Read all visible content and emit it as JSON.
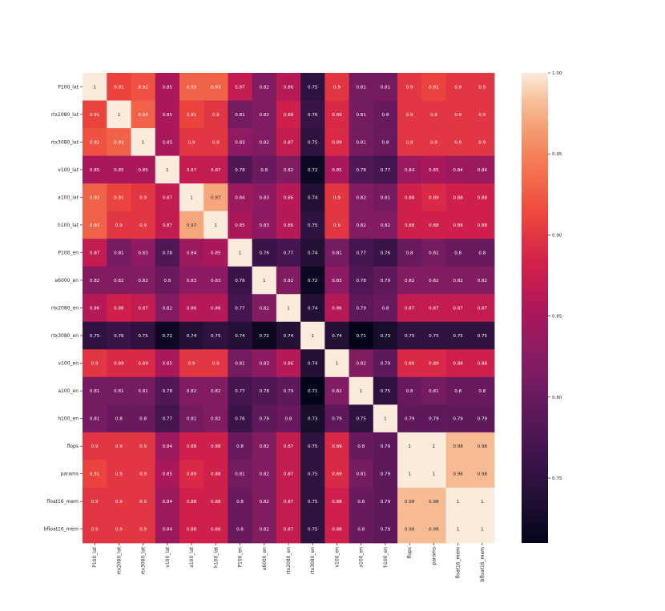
{
  "chart_data": {
    "type": "heatmap",
    "title": "",
    "xlabel": "",
    "ylabel": "",
    "labels": [
      "P100_lat",
      "rtx2080_lat",
      "rtx3080_lat",
      "v100_lat",
      "a100_lat",
      "h100_lat",
      "P100_en",
      "a6000_en",
      "rtx2080_en",
      "rtx3080_en",
      "v100_en",
      "a100_en",
      "h100_en",
      "flops",
      "params",
      "float16_mem",
      "bfloat16_mem"
    ],
    "matrix": [
      [
        1,
        0.91,
        0.92,
        0.85,
        0.93,
        0.93,
        0.87,
        0.82,
        0.86,
        0.75,
        0.9,
        0.81,
        0.81,
        0.9,
        0.91,
        0.9,
        0.9
      ],
      [
        0.91,
        1,
        0.93,
        0.85,
        0.91,
        0.9,
        0.81,
        0.82,
        0.88,
        0.76,
        0.89,
        0.81,
        0.8,
        0.9,
        0.9,
        0.9,
        0.9
      ],
      [
        0.92,
        0.93,
        1,
        0.85,
        0.9,
        0.9,
        0.83,
        0.82,
        0.87,
        0.75,
        0.89,
        0.81,
        0.8,
        0.9,
        0.9,
        0.9,
        0.9
      ],
      [
        0.85,
        0.85,
        0.85,
        1,
        0.87,
        0.87,
        0.78,
        0.8,
        0.82,
        0.72,
        0.85,
        0.78,
        0.77,
        0.84,
        0.85,
        0.84,
        0.84
      ],
      [
        0.93,
        0.91,
        0.9,
        0.87,
        1,
        0.97,
        0.84,
        0.83,
        0.86,
        0.74,
        0.9,
        0.82,
        0.81,
        0.88,
        0.89,
        0.88,
        0.88
      ],
      [
        0.93,
        0.9,
        0.9,
        0.87,
        0.97,
        1,
        0.85,
        0.83,
        0.86,
        0.75,
        0.9,
        0.82,
        0.82,
        0.88,
        0.88,
        0.88,
        0.88
      ],
      [
        0.87,
        0.81,
        0.83,
        0.78,
        0.84,
        0.85,
        1,
        0.76,
        0.77,
        0.74,
        0.81,
        0.77,
        0.76,
        0.8,
        0.81,
        0.8,
        0.8
      ],
      [
        0.82,
        0.82,
        0.82,
        0.8,
        0.83,
        0.83,
        0.76,
        1,
        0.82,
        0.72,
        0.83,
        0.78,
        0.79,
        0.82,
        0.82,
        0.82,
        0.82
      ],
      [
        0.86,
        0.88,
        0.87,
        0.82,
        0.86,
        0.86,
        0.77,
        0.82,
        1,
        0.74,
        0.86,
        0.79,
        0.8,
        0.87,
        0.87,
        0.87,
        0.87
      ],
      [
        0.75,
        0.76,
        0.75,
        0.72,
        0.74,
        0.75,
        0.74,
        0.72,
        0.74,
        1,
        0.74,
        0.71,
        0.73,
        0.75,
        0.75,
        0.75,
        0.75
      ],
      [
        0.9,
        0.89,
        0.89,
        0.85,
        0.9,
        0.9,
        0.81,
        0.83,
        0.86,
        0.74,
        1,
        0.82,
        0.79,
        0.89,
        0.89,
        0.88,
        0.88
      ],
      [
        0.81,
        0.81,
        0.81,
        0.78,
        0.82,
        0.82,
        0.77,
        0.78,
        0.79,
        0.71,
        0.82,
        1,
        0.75,
        0.8,
        0.81,
        0.8,
        0.8
      ],
      [
        0.81,
        0.8,
        0.8,
        0.77,
        0.81,
        0.82,
        0.76,
        0.79,
        0.8,
        0.73,
        0.79,
        0.75,
        1,
        0.79,
        0.79,
        0.79,
        0.79
      ],
      [
        0.9,
        0.9,
        0.9,
        0.84,
        0.88,
        0.88,
        0.8,
        0.82,
        0.87,
        0.75,
        0.89,
        0.8,
        0.79,
        1,
        1,
        0.98,
        0.98
      ],
      [
        0.91,
        0.9,
        0.9,
        0.85,
        0.89,
        0.88,
        0.81,
        0.82,
        0.87,
        0.75,
        0.89,
        0.81,
        0.79,
        1,
        1,
        0.98,
        0.98
      ],
      [
        0.9,
        0.9,
        0.9,
        0.84,
        0.88,
        0.88,
        0.8,
        0.82,
        0.87,
        0.75,
        0.88,
        0.8,
        0.79,
        0.98,
        0.98,
        1,
        1
      ],
      [
        0.9,
        0.9,
        0.9,
        0.84,
        0.88,
        0.88,
        0.8,
        0.82,
        0.87,
        0.75,
        0.88,
        0.8,
        0.79,
        0.98,
        0.98,
        1,
        1
      ]
    ],
    "colorscale": "rocket",
    "vmin": 0.71,
    "vmax": 1.0,
    "colorbar_ticks": [
      "1.00",
      "0.95",
      "0.90",
      "0.85",
      "0.80",
      "0.75"
    ],
    "colorbar_tick_values": [
      1.0,
      0.95,
      0.9,
      0.85,
      0.8,
      0.75
    ],
    "grid": false,
    "legend": "colorbar-right"
  }
}
